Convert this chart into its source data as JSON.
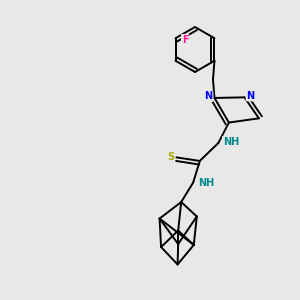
{
  "background_color": "#e8e8e8",
  "atom_colors": {
    "N": "#0000FF",
    "S": "#AAAA00",
    "F": "#FF1493",
    "C": "#000000",
    "H_teal": "#008B8B"
  },
  "bond_lw": 1.4,
  "font_size": 7.0,
  "xlim": [
    0,
    10
  ],
  "ylim": [
    0,
    10
  ]
}
